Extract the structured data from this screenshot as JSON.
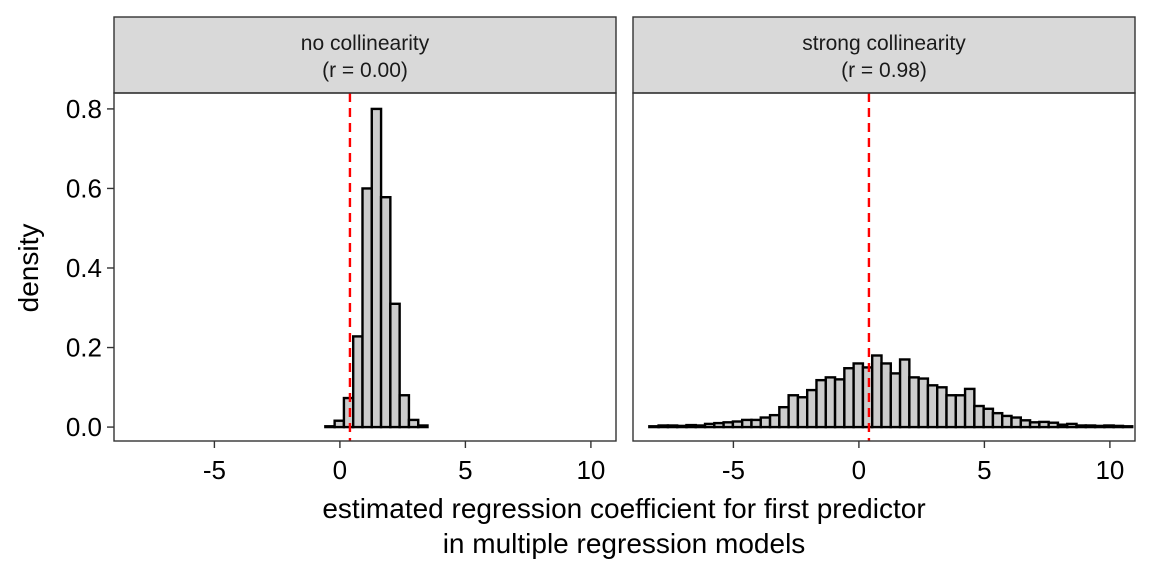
{
  "chart_data": {
    "type": "bar",
    "subtype": "histogram-facets",
    "xlabel_line1": "estimated regression coefficient for first predictor",
    "xlabel_line2": "in multiple regression models",
    "ylabel": "density",
    "xlim": [
      -9.0,
      11.0
    ],
    "ylim": [
      -0.035,
      0.84
    ],
    "xticks": [
      -5,
      0,
      5,
      10
    ],
    "xtick_labels": [
      "-5",
      "0",
      "5",
      "10"
    ],
    "yticks": [
      0.0,
      0.2,
      0.4,
      0.6,
      0.8
    ],
    "ytick_labels": [
      "0.0",
      "0.2",
      "0.4",
      "0.6",
      "0.8"
    ],
    "reference_line": {
      "x": 0.4,
      "color": "#ff0000",
      "style": "dashed"
    },
    "bin_start": -8.35,
    "binwidth": 0.37,
    "panels": [
      {
        "title_line1": "no collinearity",
        "title_line2": "(r = 0.00)",
        "densities": [
          0,
          0,
          0,
          0,
          0,
          0,
          0,
          0,
          0,
          0,
          0,
          0,
          0,
          0,
          0,
          0,
          0,
          0,
          0,
          0,
          0,
          0.002,
          0.016,
          0.073,
          0.228,
          0.6,
          0.8,
          0.578,
          0.31,
          0.08,
          0.018,
          0.004,
          0,
          0,
          0,
          0,
          0,
          0,
          0,
          0,
          0,
          0,
          0,
          0,
          0,
          0,
          0,
          0,
          0,
          0,
          0,
          0,
          0,
          0,
          0,
          0,
          0,
          0,
          0,
          0,
          0,
          0,
          0,
          0,
          0,
          0,
          0,
          0,
          0,
          0,
          0,
          0,
          0,
          0,
          0,
          0,
          0,
          0,
          0,
          0,
          0,
          0
        ]
      },
      {
        "title_line1": "strong collinearity",
        "title_line2": "(r = 0.98)",
        "densities": [
          0.002,
          0.004,
          0.004,
          0.003,
          0.005,
          0.004,
          0.008,
          0.01,
          0.012,
          0.014,
          0.018,
          0.018,
          0.024,
          0.03,
          0.05,
          0.08,
          0.075,
          0.093,
          0.118,
          0.125,
          0.12,
          0.148,
          0.16,
          0.15,
          0.18,
          0.16,
          0.135,
          0.17,
          0.125,
          0.122,
          0.105,
          0.1,
          0.08,
          0.08,
          0.096,
          0.053,
          0.046,
          0.035,
          0.028,
          0.024,
          0.017,
          0.012,
          0.013,
          0.011,
          0.006,
          0.008,
          0.004,
          0.004,
          0.003,
          0.004,
          0.003,
          0.002
        ]
      }
    ]
  }
}
